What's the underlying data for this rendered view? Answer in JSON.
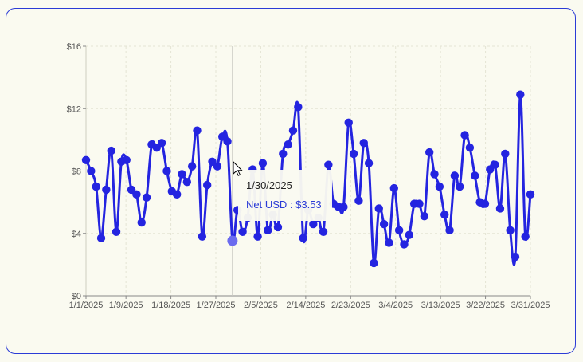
{
  "chart_data": {
    "type": "line",
    "title": "",
    "xlabel": "",
    "ylabel": "",
    "ylim": [
      0,
      16
    ],
    "y_ticks": [
      "$0",
      "$4",
      "$8",
      "$12",
      "$16"
    ],
    "y_tick_values": [
      0,
      4,
      8,
      12,
      16
    ],
    "x_ticks": [
      "1/1/2025",
      "1/9/2025",
      "1/18/2025",
      "1/27/2025",
      "2/5/2025",
      "2/14/2025",
      "2/23/2025",
      "3/4/2025",
      "3/13/2025",
      "3/22/2025",
      "3/31/2025"
    ],
    "grid": true,
    "legend": "none",
    "series": [
      {
        "name": "Net USD",
        "color": "#2424e0",
        "x_start": "1/1/2025",
        "values": [
          8.7,
          8.0,
          7.0,
          3.7,
          6.8,
          9.3,
          4.1,
          8.6,
          8.7,
          6.8,
          6.5,
          4.7,
          6.3,
          9.7,
          9.5,
          9.8,
          8.0,
          6.7,
          6.5,
          7.8,
          7.3,
          8.3,
          10.6,
          3.8,
          7.1,
          8.6,
          8.3,
          10.2,
          9.9,
          3.53,
          5.5,
          4.1,
          5.0,
          8.1,
          3.8,
          8.5,
          4.2,
          5.2,
          4.4,
          9.1,
          9.7,
          10.6,
          12.1,
          3.7,
          5.5,
          4.6,
          5.0,
          4.1,
          8.4,
          5.9,
          5.7,
          5.7,
          11.1,
          9.1,
          6.1,
          9.8,
          8.5,
          2.1,
          5.6,
          4.6,
          3.4,
          6.9,
          4.2,
          3.3,
          3.9,
          5.9,
          5.9,
          5.1,
          9.2,
          7.8,
          7.0,
          5.2,
          4.2,
          7.7,
          7.0,
          10.3,
          9.5,
          7.7,
          6.0,
          5.9,
          8.1,
          8.4,
          5.6,
          9.1,
          4.2,
          2.5,
          12.9,
          3.8,
          6.5
        ]
      }
    ],
    "tooltip": {
      "date": "1/30/2025",
      "text": "Net USD : $3.53",
      "index": 29
    }
  }
}
